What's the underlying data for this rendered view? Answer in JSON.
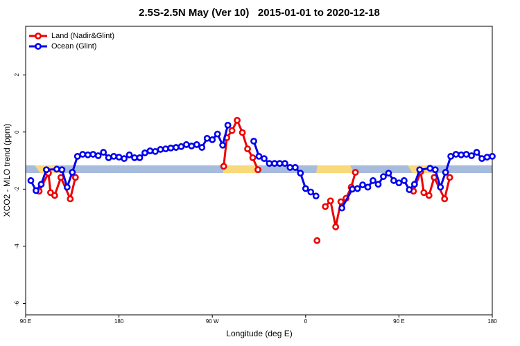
{
  "chart_data": {
    "type": "line",
    "title": "2.5S-2.5N May (Ver 10)   2015-01-01 to 2020-12-18",
    "x_label": "Longitude (deg E)",
    "y_label": "XCO2 - MLO trend (ppm)",
    "xlim": [
      90,
      540
    ],
    "ylim": [
      -6.4,
      3.7
    ],
    "xticks": [
      {
        "value": 90,
        "label": "90 E"
      },
      180,
      {
        "value": 270,
        "label": "90 W"
      },
      {
        "value": 360,
        "label": "0"
      },
      {
        "value": 450,
        "label": "90 E"
      },
      {
        "value": 540,
        "label": "180"
      }
    ],
    "yticks": [
      -6,
      -4,
      -2,
      0,
      2
    ],
    "legend": "top-left",
    "series": [
      {
        "name": "Land (Nadir&Glint)",
        "color": "#ee0000",
        "x": [
          103,
          112,
          114,
          118,
          124,
          133,
          138,
          210,
          281,
          284,
          289,
          294,
          299,
          304,
          309,
          314,
          340,
          371,
          375,
          379,
          384,
          389,
          394,
          399,
          404,
          408,
          440,
          464,
          471,
          474,
          479,
          484,
          494,
          499
        ],
        "values": [
          -2.07,
          -1.44,
          -2.12,
          -2.22,
          -1.59,
          -2.34,
          -1.59,
          null,
          -1.2,
          -0.2,
          0.05,
          0.41,
          -0.02,
          -0.59,
          -0.9,
          -1.32,
          null,
          -3.8,
          null,
          -2.61,
          -2.41,
          -3.32,
          -2.44,
          -2.32,
          -1.93,
          -1.41,
          null,
          -2.07,
          -1.39,
          -2.12,
          -2.22,
          -1.59,
          -2.34,
          -1.59
        ]
      },
      {
        "name": "Ocean (Glint)",
        "color": "#0000ee",
        "x": [
          95,
          100,
          105,
          110,
          120,
          125,
          130,
          135,
          140,
          145,
          150,
          155,
          160,
          165,
          170,
          175,
          180,
          185,
          190,
          195,
          200,
          205,
          210,
          215,
          220,
          225,
          230,
          235,
          240,
          245,
          250,
          255,
          260,
          265,
          270,
          275,
          280,
          285,
          300,
          310,
          315,
          320,
          325,
          330,
          335,
          340,
          345,
          350,
          355,
          360,
          365,
          370,
          385,
          395,
          405,
          410,
          415,
          420,
          425,
          430,
          435,
          440,
          445,
          450,
          455,
          460,
          465,
          470,
          480,
          485,
          490,
          495,
          500,
          505,
          510,
          515,
          520,
          525,
          530,
          535,
          540
        ],
        "values": [
          -1.7,
          -2.05,
          -1.83,
          -1.32,
          -1.3,
          -1.32,
          -1.93,
          -1.41,
          -0.85,
          -0.78,
          -0.8,
          -0.78,
          -0.83,
          -0.71,
          -0.9,
          -0.85,
          -0.88,
          -0.93,
          -0.8,
          -0.9,
          -0.9,
          -0.73,
          -0.66,
          -0.68,
          -0.61,
          -0.59,
          -0.56,
          -0.54,
          -0.51,
          -0.44,
          -0.49,
          -0.44,
          -0.54,
          -0.22,
          -0.27,
          -0.07,
          -0.46,
          0.24,
          null,
          -0.32,
          -0.85,
          -0.93,
          -1.1,
          -1.1,
          -1.1,
          -1.1,
          -1.24,
          -1.24,
          -1.44,
          -1.98,
          -2.1,
          -2.24,
          null,
          -2.66,
          -2.0,
          -1.98,
          -1.85,
          -1.93,
          -1.7,
          -1.83,
          -1.56,
          -1.44,
          -1.7,
          -1.78,
          -1.7,
          -2.02,
          -1.83,
          -1.32,
          -1.27,
          -1.32,
          -1.93,
          -1.41,
          -0.85,
          -0.78,
          -0.8,
          -0.78,
          -0.83,
          -0.71,
          -0.93,
          -0.88,
          -0.85
        ]
      }
    ]
  }
}
